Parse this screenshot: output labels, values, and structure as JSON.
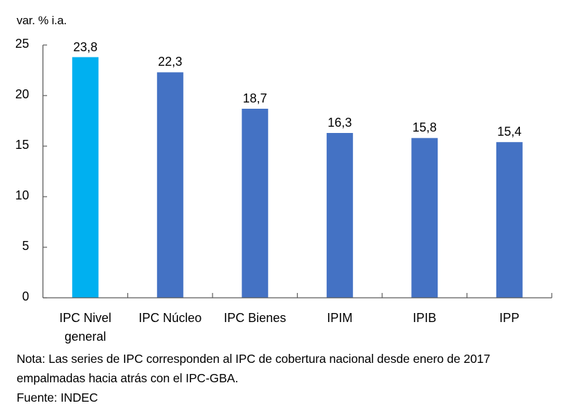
{
  "chart_data": {
    "type": "bar",
    "title": "",
    "ylabel": "var. % i.a.",
    "xlabel": "",
    "ylim": [
      0,
      25
    ],
    "yticks": [
      0,
      5,
      10,
      15,
      20,
      25
    ],
    "grid": false,
    "legend": null,
    "categories": [
      "IPC Nivel general",
      "IPC Núcleo",
      "IPC Bienes",
      "IPIM",
      "IPIB",
      "IPP"
    ],
    "category_lines": [
      [
        "IPC Nivel",
        "general"
      ],
      [
        "IPC Núcleo"
      ],
      [
        "IPC Bienes"
      ],
      [
        "IPIM"
      ],
      [
        "IPIB"
      ],
      [
        "IPP"
      ]
    ],
    "values": [
      23.8,
      22.3,
      18.7,
      16.3,
      15.8,
      15.4
    ],
    "value_labels": [
      "23,8",
      "22,3",
      "18,7",
      "16,3",
      "15,8",
      "15,4"
    ],
    "colors": [
      "#00B0F0",
      "#4472C4",
      "#4472C4",
      "#4472C4",
      "#4472C4",
      "#4472C4"
    ]
  },
  "axis": {
    "ylabel": "var. % i.a.",
    "yticks": [
      "0",
      "5",
      "10",
      "15",
      "20",
      "25"
    ]
  },
  "notes": {
    "line1": "Nota: Las series de IPC corresponden  al IPC de cobertura  nacional desde enero de 2017",
    "line2": "empalmadas hacia atrás con el IPC-GBA.",
    "source": "Fuente:  INDEC"
  }
}
